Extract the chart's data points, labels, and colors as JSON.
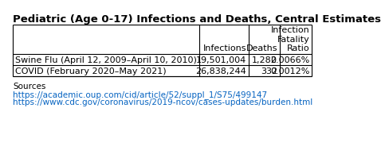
{
  "title": "Pediatric (Age 0-17) Infections and Deaths, Central Estimates",
  "col_headers": [
    "",
    "Infections",
    "Deaths",
    "Infection\nFatality\nRatio"
  ],
  "rows": [
    [
      "Swine Flu (April 12, 2009–April 10, 2010)",
      "19,501,004",
      "1,282",
      "0.0066%"
    ],
    [
      "COVID (February 2020–May 2021)",
      "26,838,244",
      "332",
      "0.0012%"
    ]
  ],
  "sources_label": "Sources",
  "sources": [
    "https://academic.oup.com/cid/article/52/suppl_1/S75/499147",
    "https://www.cdc.gov/coronavirus/2019-ncov/cases-updates/burden.html"
  ],
  "link_color": "#0563C1",
  "bg_color": "#ffffff",
  "title_fontsize": 9.5,
  "table_fontsize": 8.0,
  "sources_fontsize": 7.5
}
